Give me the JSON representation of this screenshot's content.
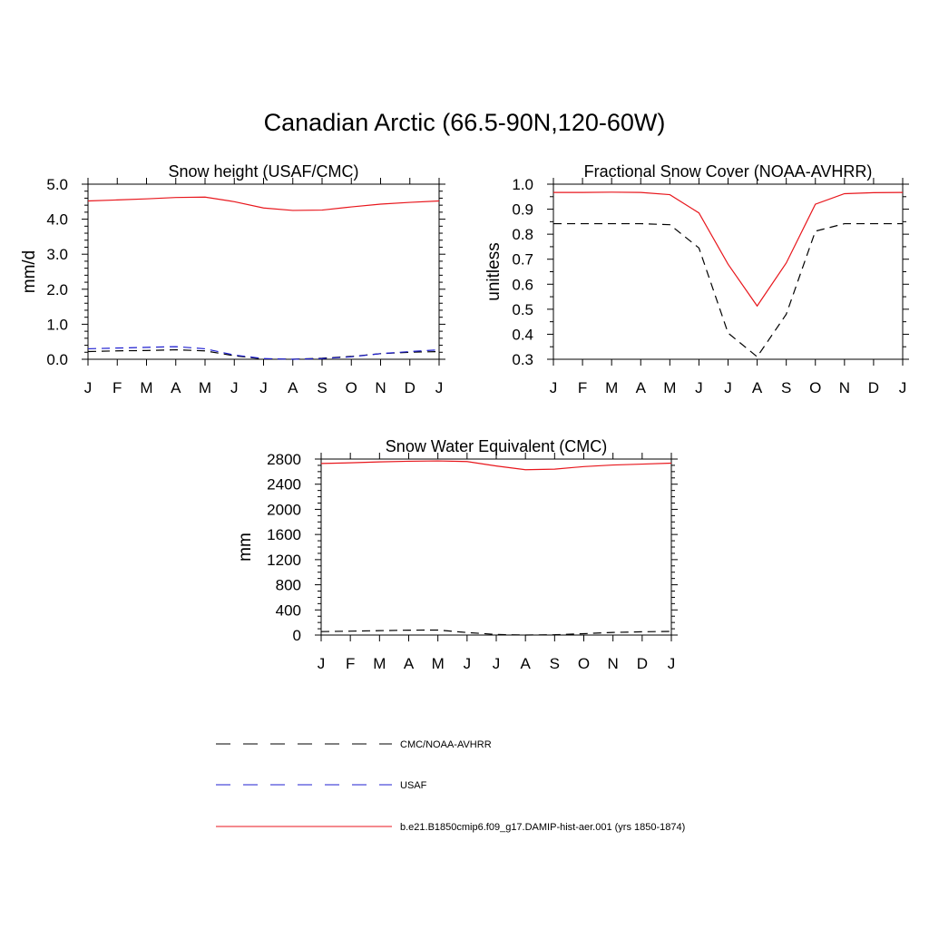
{
  "title": "Canadian Arctic (66.5-90N,120-60W)",
  "colors": {
    "model": "#e8161c",
    "obs": "#000000",
    "usaf": "#1f1fd0"
  },
  "legend": [
    {
      "label": "CMC/NOAA-AVHRR",
      "style": "dashed",
      "color": "#000000"
    },
    {
      "label": "USAF",
      "style": "dashed",
      "color": "#1f1fd0"
    },
    {
      "label": "b.e21.B1850cmip6.f09_g17.DAMIP-hist-aer.001 (yrs 1850-1874)",
      "style": "solid",
      "color": "#e8161c"
    }
  ],
  "chart_data": [
    {
      "type": "line",
      "title": "Snow height (USAF/CMC)",
      "xlabel": "",
      "ylabel": "mm/d",
      "categories": [
        "J",
        "F",
        "M",
        "A",
        "M",
        "J",
        "J",
        "A",
        "S",
        "O",
        "N",
        "D",
        "J"
      ],
      "ylim": [
        0,
        5
      ],
      "yticks": [
        "0.0",
        "1.0",
        "2.0",
        "3.0",
        "4.0",
        "5.0"
      ],
      "series": [
        {
          "name": "b.e21.B1850cmip6.f09_g17.DAMIP-hist-aer.001 (yrs 1850-1874)",
          "style": "solid",
          "color": "#e8161c",
          "values": [
            4.52,
            4.55,
            4.58,
            4.62,
            4.63,
            4.5,
            4.32,
            4.25,
            4.26,
            4.35,
            4.43,
            4.48,
            4.52
          ]
        },
        {
          "name": "CMC/NOAA-AVHRR",
          "style": "dashed",
          "color": "#000000",
          "values": [
            0.22,
            0.24,
            0.25,
            0.27,
            0.24,
            0.1,
            0.01,
            0.0,
            0.03,
            0.08,
            0.16,
            0.2,
            0.22
          ]
        },
        {
          "name": "USAF",
          "style": "dashed",
          "color": "#1f1fd0",
          "values": [
            0.3,
            0.32,
            0.34,
            0.36,
            0.3,
            0.12,
            0.02,
            0.0,
            0.02,
            0.07,
            0.16,
            0.22,
            0.27
          ]
        }
      ]
    },
    {
      "type": "line",
      "title": "Fractional Snow Cover (NOAA-AVHRR)",
      "xlabel": "",
      "ylabel": "unitless",
      "categories": [
        "J",
        "F",
        "M",
        "A",
        "M",
        "J",
        "J",
        "A",
        "S",
        "O",
        "N",
        "D",
        "J"
      ],
      "ylim": [
        0.3,
        1.0
      ],
      "yticks": [
        "0.3",
        "0.4",
        "0.5",
        "0.6",
        "0.7",
        "0.8",
        "0.9",
        "1.0"
      ],
      "series": [
        {
          "name": "b.e21.B1850cmip6.f09_g17.DAMIP-hist-aer.001 (yrs 1850-1874)",
          "style": "solid",
          "color": "#e8161c",
          "values": [
            0.967,
            0.967,
            0.968,
            0.967,
            0.958,
            0.885,
            0.68,
            0.513,
            0.685,
            0.92,
            0.962,
            0.966,
            0.967
          ]
        },
        {
          "name": "CMC/NOAA-AVHRR",
          "style": "dashed",
          "color": "#000000",
          "values": [
            0.842,
            0.842,
            0.842,
            0.842,
            0.838,
            0.745,
            0.405,
            0.31,
            0.48,
            0.812,
            0.842,
            0.842,
            0.842
          ]
        }
      ]
    },
    {
      "type": "line",
      "title": "Snow Water Equivalent (CMC)",
      "xlabel": "",
      "ylabel": "mm",
      "categories": [
        "J",
        "F",
        "M",
        "A",
        "M",
        "J",
        "J",
        "A",
        "S",
        "O",
        "N",
        "D",
        "J"
      ],
      "ylim": [
        0,
        2800
      ],
      "yticks": [
        "0",
        "400",
        "800",
        "1200",
        "1600",
        "2000",
        "2400",
        "2800"
      ],
      "series": [
        {
          "name": "b.e21.B1850cmip6.f09_g17.DAMIP-hist-aer.001 (yrs 1850-1874)",
          "style": "solid",
          "color": "#e8161c",
          "values": [
            2730,
            2740,
            2755,
            2765,
            2770,
            2760,
            2690,
            2630,
            2640,
            2680,
            2705,
            2720,
            2735
          ]
        },
        {
          "name": "CMC/NOAA-AVHRR",
          "style": "dashed",
          "color": "#000000",
          "values": [
            55,
            62,
            70,
            78,
            80,
            40,
            10,
            0,
            5,
            22,
            42,
            52,
            58
          ]
        }
      ]
    }
  ]
}
